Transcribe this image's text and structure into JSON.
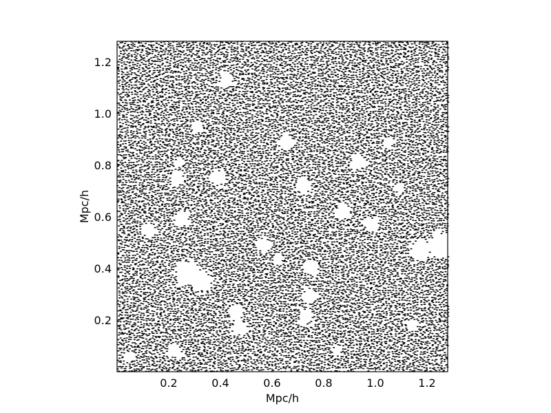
{
  "chart_data": {
    "type": "scatter",
    "title": "",
    "xlabel": "Mpc/h",
    "ylabel": "Mpc/h",
    "xlim": [
      0.0,
      1.28
    ],
    "ylim": [
      0.0,
      1.28
    ],
    "xticks": [
      {
        "value": 0.2,
        "label": "0.2"
      },
      {
        "value": 0.4,
        "label": "0.4"
      },
      {
        "value": 0.6,
        "label": "0.6"
      },
      {
        "value": 0.8,
        "label": "0.8"
      },
      {
        "value": 1.0,
        "label": "1.0"
      },
      {
        "value": 1.2,
        "label": "1.2"
      }
    ],
    "yticks": [
      {
        "value": 0.2,
        "label": "0.2"
      },
      {
        "value": 0.4,
        "label": "0.4"
      },
      {
        "value": 0.6,
        "label": "0.6"
      },
      {
        "value": 0.8,
        "label": "0.8"
      },
      {
        "value": 1.0,
        "label": "1.0"
      },
      {
        "value": 1.2,
        "label": "1.2"
      }
    ],
    "grid": false,
    "legend": "none",
    "marker_color": "#000000",
    "marker": "dot",
    "series": [
      {
        "particle_grid_spacing": 0.01,
        "voids": [
          {
            "x": 0.93,
            "y": 0.81,
            "r": 0.03
          },
          {
            "x": 1.25,
            "y": 0.49,
            "r": 0.05
          },
          {
            "x": 1.17,
            "y": 0.47,
            "r": 0.04
          },
          {
            "x": 0.23,
            "y": 0.75,
            "r": 0.03
          },
          {
            "x": 0.39,
            "y": 0.75,
            "r": 0.03
          },
          {
            "x": 0.27,
            "y": 0.38,
            "r": 0.05
          },
          {
            "x": 0.33,
            "y": 0.35,
            "r": 0.04
          },
          {
            "x": 0.12,
            "y": 0.55,
            "r": 0.03
          },
          {
            "x": 0.46,
            "y": 0.23,
            "r": 0.03
          },
          {
            "x": 0.47,
            "y": 0.17,
            "r": 0.03
          },
          {
            "x": 0.74,
            "y": 0.29,
            "r": 0.03
          },
          {
            "x": 0.73,
            "y": 0.21,
            "r": 0.03
          },
          {
            "x": 0.87,
            "y": 0.62,
            "r": 0.03
          },
          {
            "x": 0.98,
            "y": 0.57,
            "r": 0.03
          },
          {
            "x": 0.57,
            "y": 0.49,
            "r": 0.03
          },
          {
            "x": 0.22,
            "y": 0.08,
            "r": 0.03
          },
          {
            "x": 0.24,
            "y": 0.81,
            "r": 0.02
          },
          {
            "x": 0.42,
            "y": 1.13,
            "r": 0.03
          },
          {
            "x": 0.65,
            "y": 0.89,
            "r": 0.03
          },
          {
            "x": 0.72,
            "y": 0.72,
            "r": 0.03
          },
          {
            "x": 0.25,
            "y": 0.59,
            "r": 0.03
          },
          {
            "x": 0.62,
            "y": 0.43,
            "r": 0.02
          },
          {
            "x": 0.75,
            "y": 0.4,
            "r": 0.03
          },
          {
            "x": 0.85,
            "y": 0.08,
            "r": 0.02
          },
          {
            "x": 1.14,
            "y": 0.18,
            "r": 0.02
          },
          {
            "x": 1.09,
            "y": 0.71,
            "r": 0.02
          },
          {
            "x": 1.05,
            "y": 0.89,
            "r": 0.02
          },
          {
            "x": 0.05,
            "y": 0.06,
            "r": 0.02
          },
          {
            "x": 0.31,
            "y": 0.95,
            "r": 0.02
          }
        ]
      }
    ]
  }
}
